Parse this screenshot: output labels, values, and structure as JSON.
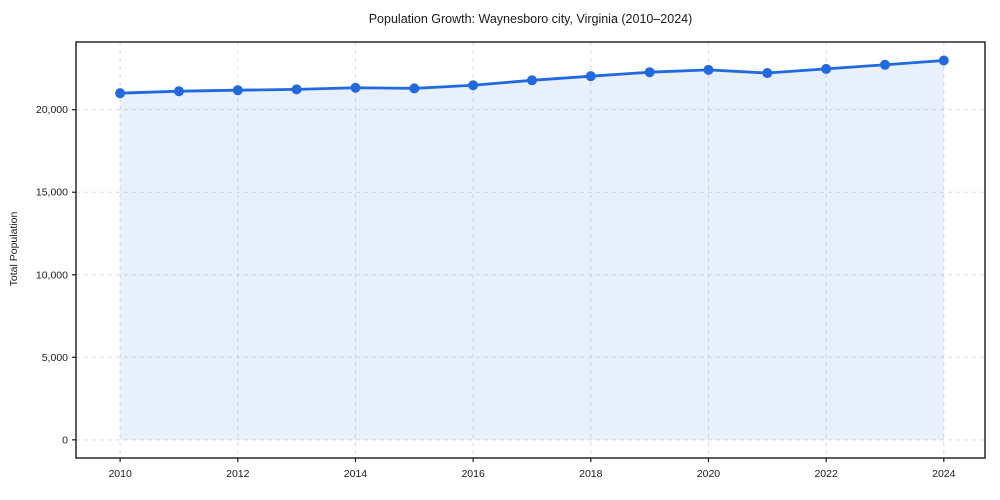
{
  "chart_data": {
    "type": "line",
    "title": "Population Growth: Waynesboro city, Virginia (2010–2024)",
    "xlabel": "",
    "ylabel": "Total Population",
    "x": [
      2010,
      2011,
      2012,
      2013,
      2014,
      2015,
      2016,
      2017,
      2018,
      2019,
      2020,
      2021,
      2022,
      2023,
      2024
    ],
    "series": [
      {
        "name": "Total Population",
        "values": [
          21000,
          21120,
          21180,
          21230,
          21330,
          21290,
          21480,
          21780,
          22030,
          22270,
          22410,
          22220,
          22470,
          22720,
          22980
        ]
      }
    ],
    "xticks": [
      2010,
      2012,
      2014,
      2016,
      2018,
      2020,
      2022,
      2024
    ],
    "yticks": [
      0,
      5000,
      10000,
      15000,
      20000
    ],
    "xlim": [
      2009.25,
      2024.7
    ],
    "ylim": [
      -1100,
      24100
    ],
    "grid": "dashed both axes",
    "legend": "none",
    "marker": "circle",
    "area_fill": true,
    "colors": {
      "line": "#2069e0",
      "fill_opacity": "0.1",
      "grid": "#dcdcdc",
      "axis": "#1a1a1a",
      "text": "#1a1a1a",
      "background": "#ffffff"
    }
  }
}
